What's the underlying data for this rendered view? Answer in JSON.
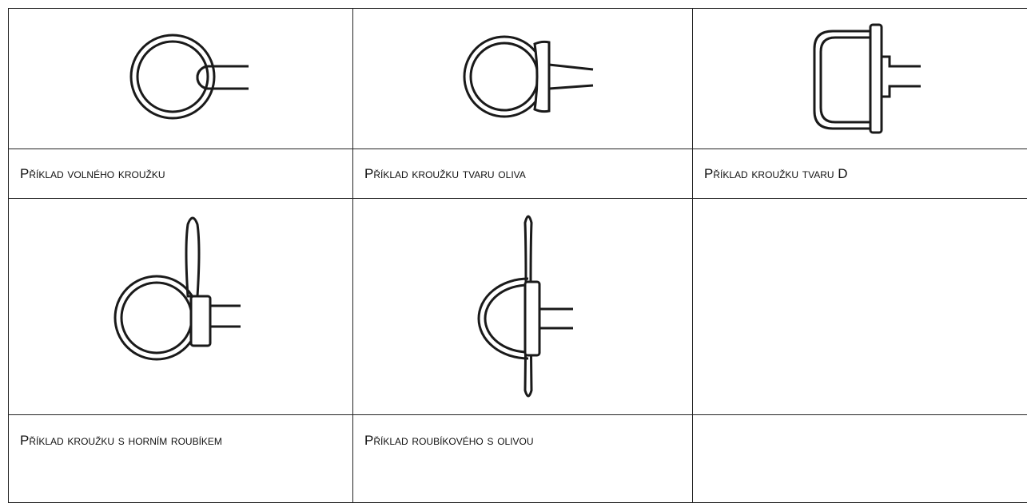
{
  "table": {
    "captions": [
      "Příklad volného kroužku",
      "Příklad kroužku tvaru oliva",
      "Příklad kroužku tvaru D",
      "Příklad kroužku s horním roubíkem",
      "Příklad roubíkového s olivou"
    ]
  }
}
